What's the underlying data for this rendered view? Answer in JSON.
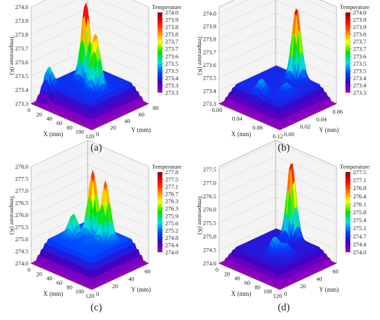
{
  "figure": {
    "labels": [
      "(a)",
      "(b)",
      "(c)",
      "(d)"
    ]
  },
  "chart_data": [
    {
      "type": "surface3d",
      "title": "",
      "xlabel": "X (mm)",
      "ylabel": "Y (mm)",
      "zlabel": "Temperature (K)",
      "x_ticks": [
        "0",
        "20",
        "40",
        "60",
        "80",
        "100",
        "120"
      ],
      "y_ticks": [
        "0",
        "20",
        "40",
        "60",
        "80"
      ],
      "z_ticks": [
        "273.3",
        "273.4",
        "273.5",
        "273.6",
        "273.7",
        "273.8",
        "273.9",
        "274.0"
      ],
      "xlim": [
        0,
        120
      ],
      "ylim": [
        0,
        80
      ],
      "zlim": [
        273.3,
        274.0
      ],
      "colorbar": {
        "title": "Temperature",
        "ticks": [
          "274.0",
          "273.9",
          "273.8",
          "273.8",
          "273.7",
          "273.7",
          "273.6",
          "273.5",
          "273.5",
          "273.4",
          "273.3",
          "273.3"
        ]
      },
      "peaks": [
        {
          "x": 45,
          "y": 45,
          "z": 274.0
        },
        {
          "x": 70,
          "y": 40,
          "z": 273.77
        },
        {
          "x": 80,
          "y": 35,
          "z": 273.72
        },
        {
          "x": 20,
          "y": 10,
          "z": 273.58
        }
      ],
      "base_z": 273.3,
      "plateau_z": 273.45
    },
    {
      "type": "surface3d",
      "title": "",
      "xlabel": "X (mm)",
      "ylabel": "Y (mm)",
      "zlabel": "Temperature (K)",
      "x_ticks": [
        "0.00",
        "0.04",
        "0.08",
        "0.12"
      ],
      "y_ticks": [
        "0.00",
        "0.02",
        "0.04",
        "0.06"
      ],
      "z_ticks": [
        "273.3",
        "273.4",
        "273.5",
        "273.6",
        "273.7",
        "273.8",
        "273.9",
        "274.0"
      ],
      "xlim": [
        0,
        0.12
      ],
      "ylim": [
        0,
        0.07
      ],
      "zlim": [
        273.3,
        274.05
      ],
      "colorbar": {
        "title": "Temperature",
        "ticks": [
          "274.0",
          "273.9",
          "273.9",
          "273.8",
          "273.7",
          "273.7",
          "273.6",
          "273.5",
          "273.5",
          "273.4",
          "273.4",
          "273.3"
        ]
      },
      "peaks": [
        {
          "x": 0.065,
          "y": 0.055,
          "z": 274.0
        },
        {
          "x": 0.06,
          "y": 0.015,
          "z": 273.55
        },
        {
          "x": 0.085,
          "y": 0.03,
          "z": 273.52
        }
      ],
      "base_z": 273.3,
      "plateau_z": 273.45
    },
    {
      "type": "surface3d",
      "title": "",
      "xlabel": "X (mm)",
      "ylabel": "Y (mm)",
      "zlabel": "Temperature (K)",
      "x_ticks": [
        "0",
        "20",
        "40",
        "60",
        "80",
        "100",
        "120"
      ],
      "y_ticks": [
        "0",
        "20",
        "40",
        "60"
      ],
      "z_ticks": [
        "274.0",
        "274.5",
        "275.0",
        "275.5",
        "276.0",
        "276.5",
        "277.0",
        "277.5",
        "278.0"
      ],
      "xlim": [
        0,
        120
      ],
      "ylim": [
        0,
        70
      ],
      "zlim": [
        274.0,
        278.0
      ],
      "colorbar": {
        "title": "Temperature",
        "ticks": [
          "277.8",
          "277.5",
          "277.1",
          "276.7",
          "276.3",
          "276.3",
          "275.9",
          "275.6",
          "275.2",
          "274.8",
          "274.4",
          "274.0"
        ]
      },
      "peaks": [
        {
          "x": 50,
          "y": 45,
          "z": 277.6
        },
        {
          "x": 75,
          "y": 45,
          "z": 277.4
        },
        {
          "x": 35,
          "y": 30,
          "z": 275.9
        },
        {
          "x": 65,
          "y": 30,
          "z": 275.1
        }
      ],
      "base_z": 274.0,
      "plateau_z": 275.0
    },
    {
      "type": "surface3d",
      "title": "",
      "xlabel": "X (mm)",
      "ylabel": "Y (mm)",
      "zlabel": "Temperature (K)",
      "x_ticks": [
        "0",
        "20",
        "40",
        "60",
        "80",
        "100",
        "120"
      ],
      "y_ticks": [
        "0",
        "20",
        "40",
        "60"
      ],
      "z_ticks": [
        "274.0",
        "274.5",
        "275.0",
        "275.5",
        "276.0",
        "276.5",
        "277.0",
        "277.5"
      ],
      "xlim": [
        0,
        120
      ],
      "ylim": [
        0,
        70
      ],
      "zlim": [
        274.0,
        277.6
      ],
      "colorbar": {
        "title": "Temperature",
        "ticks": [
          "277.5",
          "277.1",
          "276.8",
          "276.4",
          "276.1",
          "275.8",
          "275.4",
          "275.1",
          "274.7",
          "274.4",
          "274.0"
        ]
      },
      "peaks": [
        {
          "x": 55,
          "y": 55,
          "z": 277.5
        },
        {
          "x": 70,
          "y": 25,
          "z": 275.2
        },
        {
          "x": 85,
          "y": 30,
          "z": 275.0
        }
      ],
      "base_z": 274.0,
      "plateau_z": 274.6
    }
  ]
}
